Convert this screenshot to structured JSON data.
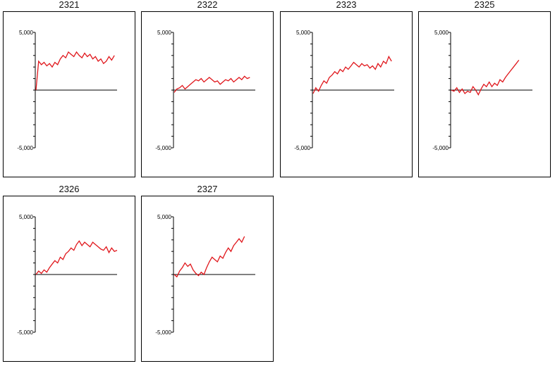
{
  "colors": {
    "series": "#e0161b",
    "axis": "#000000"
  },
  "chart_data": [
    {
      "type": "line",
      "title": "2321",
      "ylim": [
        -5000,
        5000
      ],
      "yticks": [
        "5,000",
        "-5,000"
      ],
      "grid": false,
      "series": [
        {
          "values": [
            0,
            2500,
            2200,
            2400,
            2100,
            2300,
            2000,
            2400,
            2200,
            2700,
            3000,
            2800,
            3300,
            3100,
            2900,
            3300,
            3000,
            2800,
            3200,
            2900,
            3100,
            2700,
            2900,
            2500,
            2700,
            2300,
            2500,
            2900,
            2600,
            3000
          ]
        }
      ]
    },
    {
      "type": "line",
      "title": "2322",
      "ylim": [
        -5000,
        5000
      ],
      "yticks": [
        "5,000",
        "-5,000"
      ],
      "grid": false,
      "series": [
        {
          "values": [
            -200,
            100,
            200,
            400,
            100,
            300,
            500,
            700,
            900,
            800,
            1000,
            700,
            900,
            1100,
            900,
            700,
            800,
            500,
            700,
            900,
            800,
            1000,
            700,
            900,
            1100,
            900,
            1200,
            1000,
            1100
          ]
        }
      ]
    },
    {
      "type": "line",
      "title": "2323",
      "ylim": [
        -5000,
        5000
      ],
      "yticks": [
        "5,000",
        "-5,000"
      ],
      "grid": false,
      "series": [
        {
          "values": [
            -300,
            200,
            -100,
            400,
            800,
            600,
            1100,
            1300,
            1600,
            1400,
            1800,
            1600,
            2000,
            1800,
            2100,
            2400,
            2200,
            2000,
            2300,
            2100,
            2200,
            1900,
            2100,
            1800,
            2300,
            2000,
            2500,
            2300,
            2900,
            2500
          ]
        }
      ]
    },
    {
      "type": "line",
      "title": "2325",
      "ylim": [
        -5000,
        5000
      ],
      "yticks": [
        "5,000",
        "-5,000"
      ],
      "grid": false,
      "series": [
        {
          "values": [
            0,
            -100,
            200,
            -200,
            100,
            -300,
            -100,
            -200,
            300,
            0,
            -400,
            100,
            500,
            300,
            700,
            300,
            600,
            400,
            900,
            700,
            1100,
            1400,
            1700,
            2000,
            2300,
            2600
          ]
        }
      ]
    },
    {
      "type": "line",
      "title": "2326",
      "ylim": [
        -5000,
        5000
      ],
      "yticks": [
        "5,000",
        "-5,000"
      ],
      "grid": false,
      "series": [
        {
          "values": [
            0,
            300,
            100,
            400,
            200,
            600,
            900,
            1200,
            1000,
            1500,
            1300,
            1800,
            2000,
            2300,
            2100,
            2600,
            2900,
            2500,
            2800,
            2600,
            2400,
            2800,
            2600,
            2400,
            2200,
            2100,
            2400,
            1900,
            2300,
            2000,
            2100
          ]
        }
      ]
    },
    {
      "type": "line",
      "title": "2327",
      "ylim": [
        -5000,
        5000
      ],
      "yticks": [
        "5,000",
        "-5,000"
      ],
      "grid": false,
      "series": [
        {
          "values": [
            0,
            -200,
            300,
            600,
            1000,
            700,
            900,
            400,
            100,
            -100,
            200,
            0,
            600,
            1100,
            1500,
            1300,
            1100,
            1600,
            1400,
            1900,
            2300,
            2000,
            2500,
            2800,
            3100,
            2800,
            3300
          ]
        }
      ]
    }
  ]
}
